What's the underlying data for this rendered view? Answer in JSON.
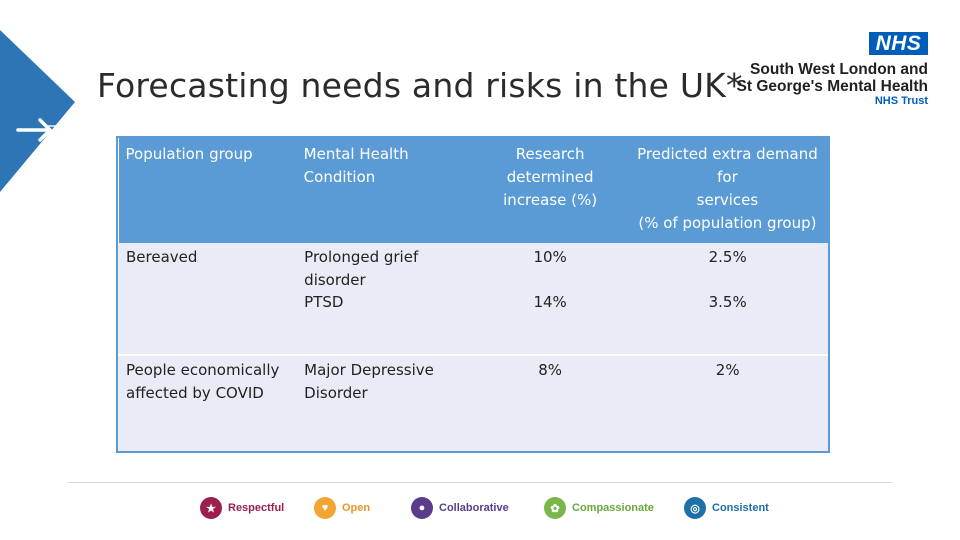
{
  "title": "Forecasting needs and risks in the UK*",
  "logo": {
    "nhs": "NHS",
    "org_line1": "South West London and",
    "org_line2": "St George's Mental Health",
    "org_line3": "NHS Trust"
  },
  "table": {
    "headers": [
      [
        "Population group"
      ],
      [
        "Mental Health",
        "Condition"
      ],
      [
        "Research",
        "determined",
        "increase (%)"
      ],
      [
        "Predicted extra demand for",
        "services",
        "(% of  population group)"
      ]
    ],
    "rows": [
      {
        "group": [
          "Bereaved"
        ],
        "conditions": [
          "Prolonged grief",
          "disorder",
          "PTSD"
        ],
        "increase": [
          "10%",
          "14%"
        ],
        "demand": [
          "2.5%",
          "3.5%"
        ]
      },
      {
        "group": [
          "People economically",
          "affected by COVID"
        ],
        "conditions": [
          "Major Depressive",
          "Disorder"
        ],
        "increase": [
          "8%"
        ],
        "demand": [
          "2%"
        ]
      }
    ]
  },
  "values_bar": [
    {
      "label": "Respectful",
      "color": "#9c1f4f",
      "text_color": "#9c1f4f",
      "icon": "handshake-icon"
    },
    {
      "label": "Open",
      "color": "#f2a533",
      "text_color": "#e8962b",
      "icon": "heart-icon"
    },
    {
      "label": "Collaborative",
      "color": "#5a3d8a",
      "text_color": "#5a3d8a",
      "icon": "people-icon"
    },
    {
      "label": "Compassionate",
      "color": "#7ab648",
      "text_color": "#6aa83d",
      "icon": "hands-icon"
    },
    {
      "label": "Consistent",
      "color": "#1f6fa8",
      "text_color": "#1f6fa8",
      "icon": "target-icon"
    }
  ]
}
